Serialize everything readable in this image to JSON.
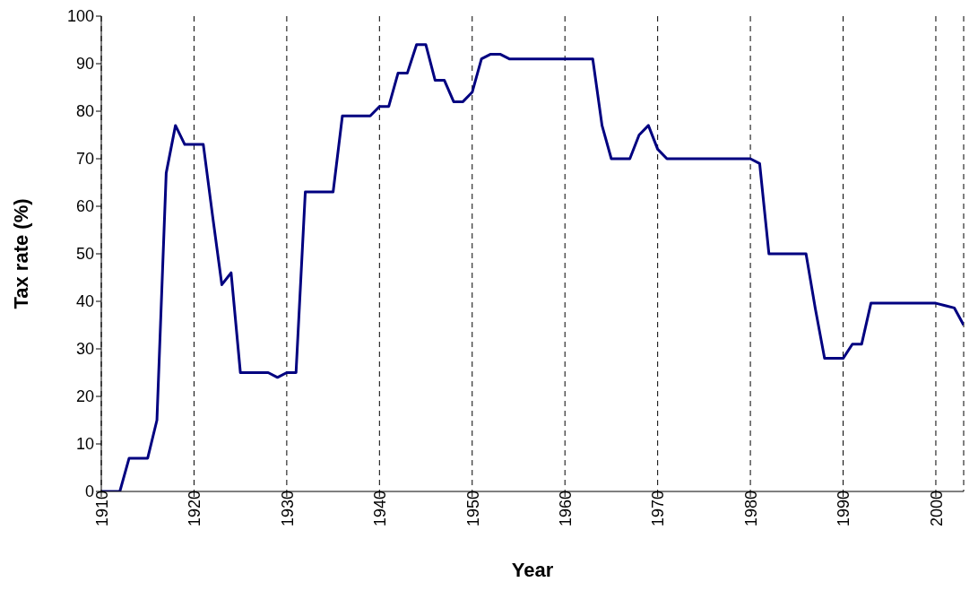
{
  "chart_data": {
    "type": "line",
    "xlabel": "Year",
    "ylabel": "Tax rate (%)",
    "x": [
      1910,
      1911,
      1912,
      1913,
      1914,
      1915,
      1916,
      1917,
      1918,
      1919,
      1920,
      1921,
      1922,
      1923,
      1924,
      1925,
      1926,
      1927,
      1928,
      1929,
      1930,
      1931,
      1932,
      1933,
      1934,
      1935,
      1936,
      1937,
      1938,
      1939,
      1940,
      1941,
      1942,
      1943,
      1944,
      1945,
      1946,
      1947,
      1948,
      1949,
      1950,
      1951,
      1952,
      1953,
      1954,
      1955,
      1956,
      1957,
      1958,
      1959,
      1960,
      1961,
      1962,
      1963,
      1964,
      1965,
      1966,
      1967,
      1968,
      1969,
      1970,
      1971,
      1972,
      1973,
      1974,
      1975,
      1976,
      1977,
      1978,
      1979,
      1980,
      1981,
      1982,
      1983,
      1984,
      1985,
      1986,
      1987,
      1988,
      1989,
      1990,
      1991,
      1992,
      1993,
      1994,
      1995,
      1996,
      1997,
      1998,
      1999,
      2000,
      2001,
      2002,
      2003
    ],
    "series": [
      {
        "color": "#000080",
        "values": [
          0,
          0,
          0,
          7,
          7,
          7,
          15,
          67,
          77,
          73,
          73,
          73,
          58,
          43.5,
          46,
          25,
          25,
          25,
          25,
          24,
          25,
          25,
          63,
          63,
          63,
          63,
          79,
          79,
          79,
          79,
          81,
          81,
          88,
          88,
          94,
          94,
          86.5,
          86.5,
          82,
          82,
          84,
          91,
          92,
          92,
          91,
          91,
          91,
          91,
          91,
          91,
          91,
          91,
          91,
          91,
          77,
          70,
          70,
          70,
          75,
          77,
          72,
          70,
          70,
          70,
          70,
          70,
          70,
          70,
          70,
          70,
          70,
          69,
          50,
          50,
          50,
          50,
          50,
          38.5,
          28,
          28,
          28,
          31,
          31,
          39.6,
          39.6,
          39.6,
          39.6,
          39.6,
          39.6,
          39.6,
          39.6,
          39.1,
          38.6,
          35
        ]
      }
    ],
    "xlim": [
      1910,
      2003
    ],
    "xticks": [
      1910,
      1920,
      1930,
      1940,
      1950,
      1960,
      1970,
      1980,
      1990,
      2000
    ],
    "ylim": [
      0,
      100
    ],
    "yticks": [
      0,
      10,
      20,
      30,
      40,
      50,
      60,
      70,
      80,
      90,
      100
    ],
    "grid": "x",
    "legend": false,
    "marker": "none",
    "line_style": "solid"
  }
}
